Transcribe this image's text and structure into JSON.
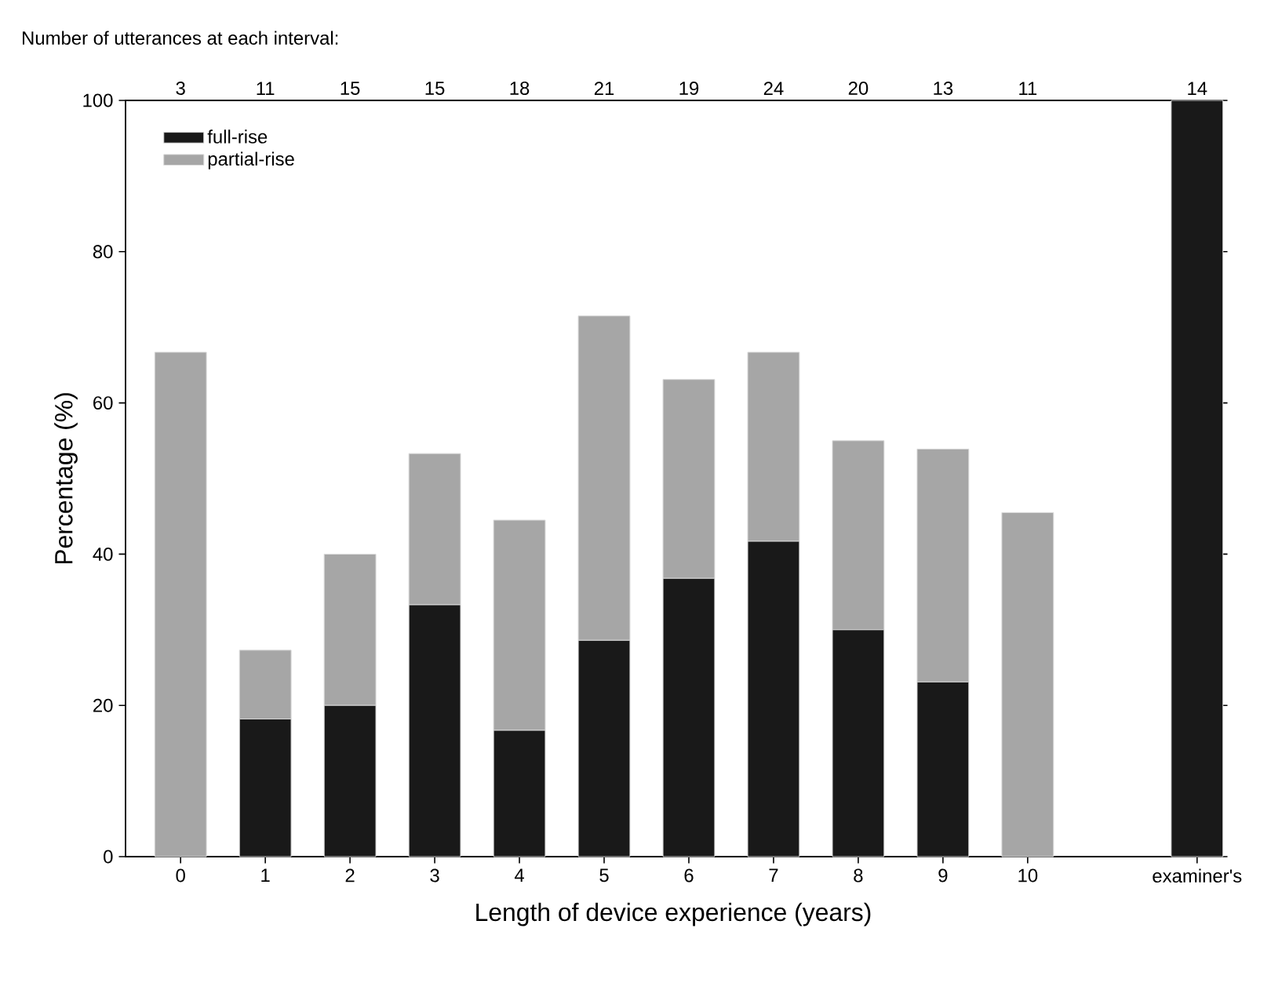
{
  "chart_data": {
    "type": "bar",
    "stacked": true,
    "title": "Number of utterances at each interval:",
    "xlabel": "Length of device experience (years)",
    "ylabel": "Percentage (%)",
    "categories": [
      "0",
      "1",
      "2",
      "3",
      "4",
      "5",
      "6",
      "7",
      "8",
      "9",
      "10",
      "examiner's"
    ],
    "series": [
      {
        "name": "full-rise",
        "color": "#191919",
        "values": [
          0,
          18.2,
          20,
          33.3,
          16.7,
          28.6,
          36.8,
          41.7,
          30,
          23.1,
          0,
          100
        ]
      },
      {
        "name": "partial-rise",
        "color": "#a6a6a6",
        "values": [
          66.7,
          9.1,
          20,
          20,
          27.8,
          42.9,
          26.3,
          25,
          25,
          30.8,
          45.5,
          0
        ]
      }
    ],
    "annotations": [
      "3",
      "11",
      "15",
      "15",
      "18",
      "21",
      "19",
      "24",
      "20",
      "13",
      "11",
      "14"
    ],
    "ylim": [
      0,
      100
    ],
    "yticks": [
      0,
      20,
      40,
      60,
      80,
      100
    ],
    "legend": "top left"
  }
}
